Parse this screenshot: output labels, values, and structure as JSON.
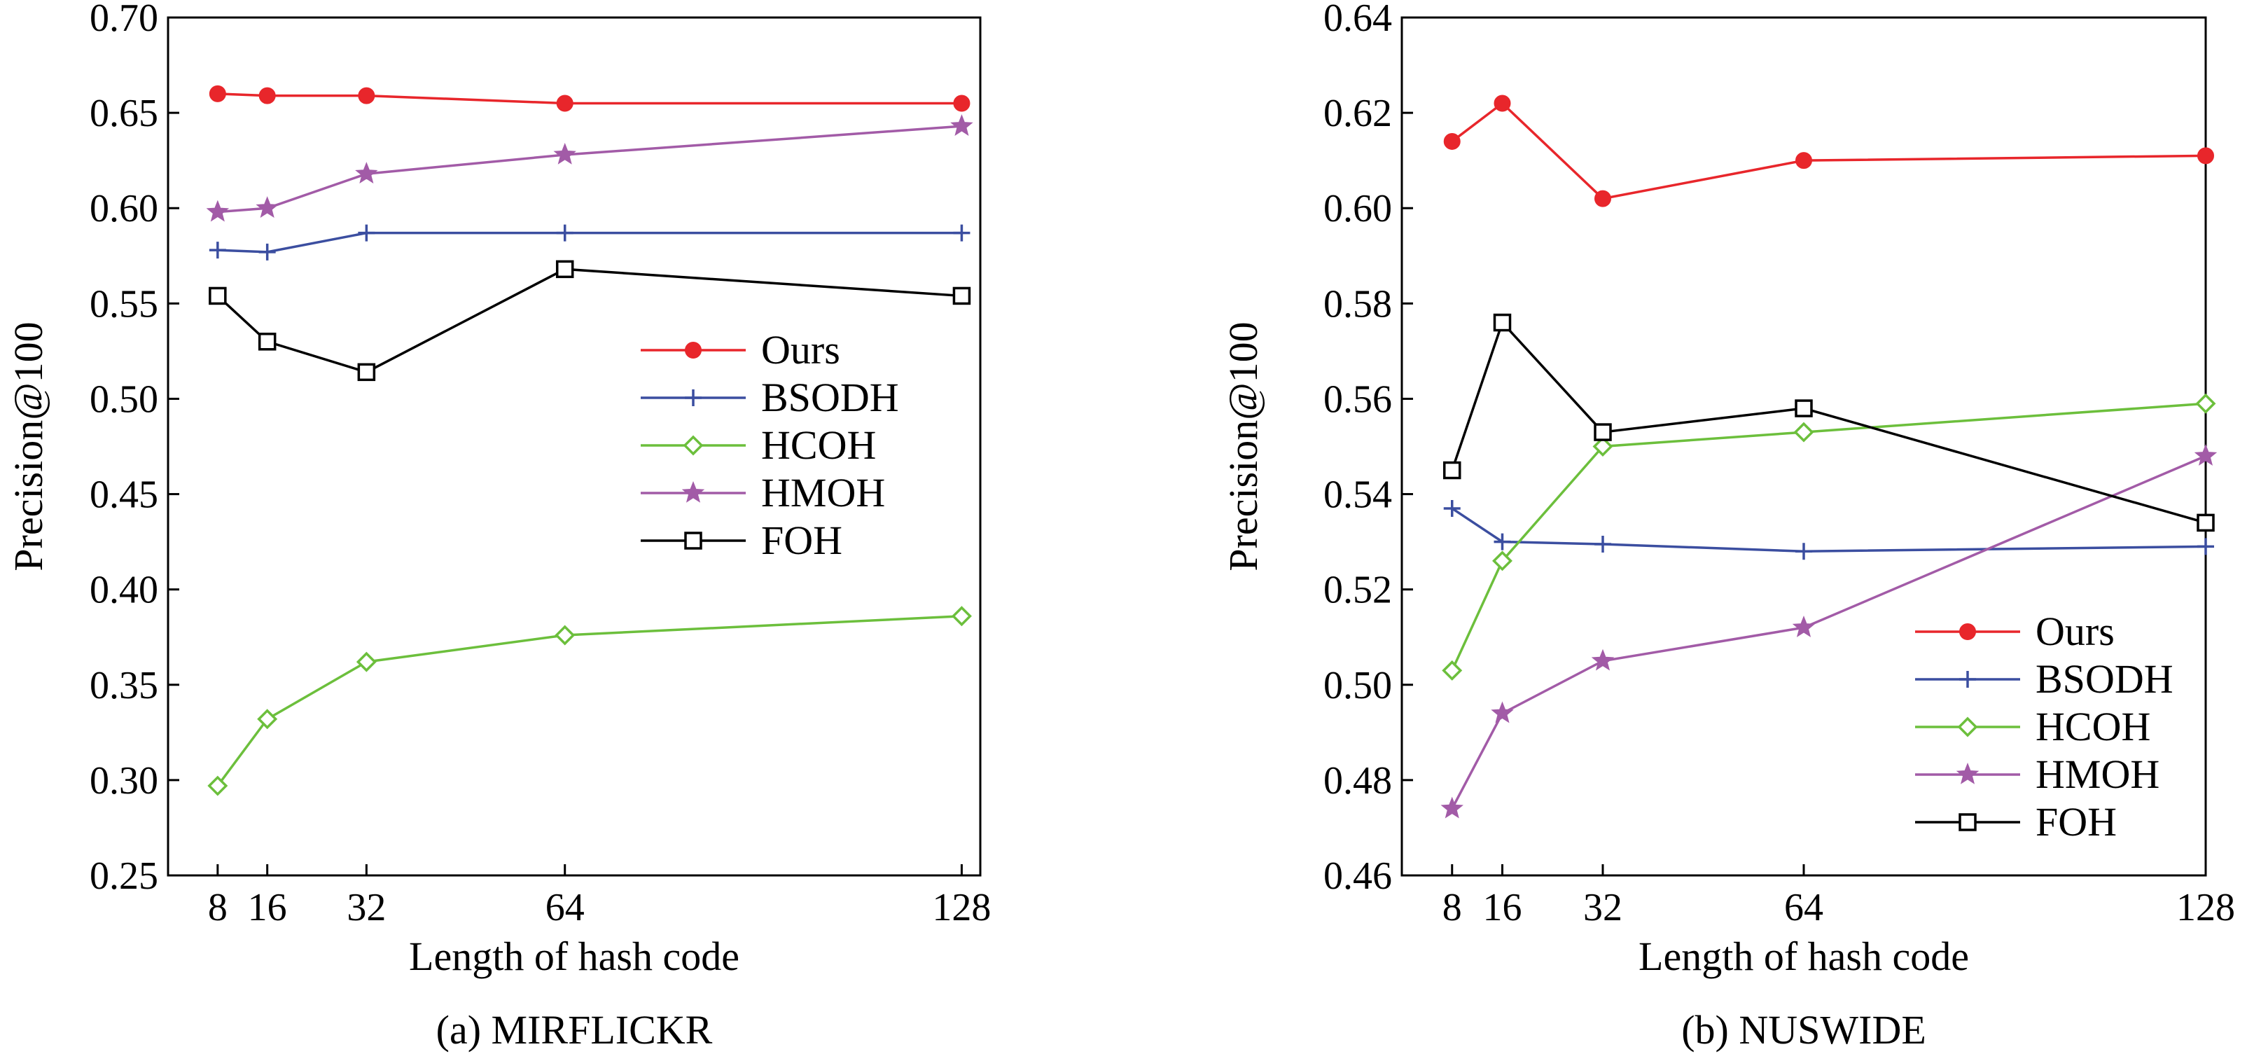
{
  "chart_data": [
    {
      "type": "line",
      "caption": "(a) MIRFLICKR",
      "xlabel": "Length of hash code",
      "ylabel": "Precision@100",
      "x": [
        8,
        16,
        32,
        64,
        128
      ],
      "x_ticks": [
        "8",
        "16",
        "32",
        "64",
        "128"
      ],
      "ylim": [
        0.25,
        0.7
      ],
      "y_ticks": [
        "0.25",
        "0.30",
        "0.35",
        "0.40",
        "0.45",
        "0.50",
        "0.55",
        "0.60",
        "0.65",
        "0.70"
      ],
      "legend_position": "center-right",
      "series": [
        {
          "name": "Ours",
          "color": "#e8262b",
          "marker": "circle",
          "values": [
            0.66,
            0.659,
            0.659,
            0.655,
            0.655
          ]
        },
        {
          "name": "BSODH",
          "color": "#3b4ea0",
          "marker": "plus",
          "values": [
            0.578,
            0.577,
            0.587,
            0.587,
            0.587
          ]
        },
        {
          "name": "HCOH",
          "color": "#6cbf3c",
          "marker": "diamond",
          "values": [
            0.297,
            0.332,
            0.362,
            0.376,
            0.386
          ]
        },
        {
          "name": "HMOH",
          "color": "#a25ba7",
          "marker": "star",
          "values": [
            0.598,
            0.6,
            0.618,
            0.628,
            0.643
          ]
        },
        {
          "name": "FOH",
          "color": "#000000",
          "marker": "square",
          "values": [
            0.554,
            0.53,
            0.514,
            0.568,
            0.554
          ]
        }
      ]
    },
    {
      "type": "line",
      "caption": "(b) NUSWIDE",
      "xlabel": "Length of hash code",
      "ylabel": "Precision@100",
      "x": [
        8,
        16,
        32,
        64,
        128
      ],
      "x_ticks": [
        "8",
        "16",
        "32",
        "64",
        "128"
      ],
      "ylim": [
        0.46,
        0.64
      ],
      "y_ticks": [
        "0.46",
        "0.48",
        "0.50",
        "0.52",
        "0.54",
        "0.56",
        "0.58",
        "0.60",
        "0.62",
        "0.64"
      ],
      "legend_position": "lower-right",
      "series": [
        {
          "name": "Ours",
          "color": "#e8262b",
          "marker": "circle",
          "values": [
            0.614,
            0.622,
            0.602,
            0.61,
            0.611
          ]
        },
        {
          "name": "BSODH",
          "color": "#3b4ea0",
          "marker": "plus",
          "values": [
            0.537,
            0.53,
            0.5295,
            0.528,
            0.529
          ]
        },
        {
          "name": "HCOH",
          "color": "#6cbf3c",
          "marker": "diamond",
          "values": [
            0.503,
            0.526,
            0.55,
            0.553,
            0.559
          ]
        },
        {
          "name": "HMOH",
          "color": "#a25ba7",
          "marker": "star",
          "values": [
            0.474,
            0.494,
            0.505,
            0.512,
            0.548
          ]
        },
        {
          "name": "FOH",
          "color": "#000000",
          "marker": "square",
          "values": [
            0.545,
            0.576,
            0.553,
            0.558,
            0.534
          ]
        }
      ]
    }
  ]
}
